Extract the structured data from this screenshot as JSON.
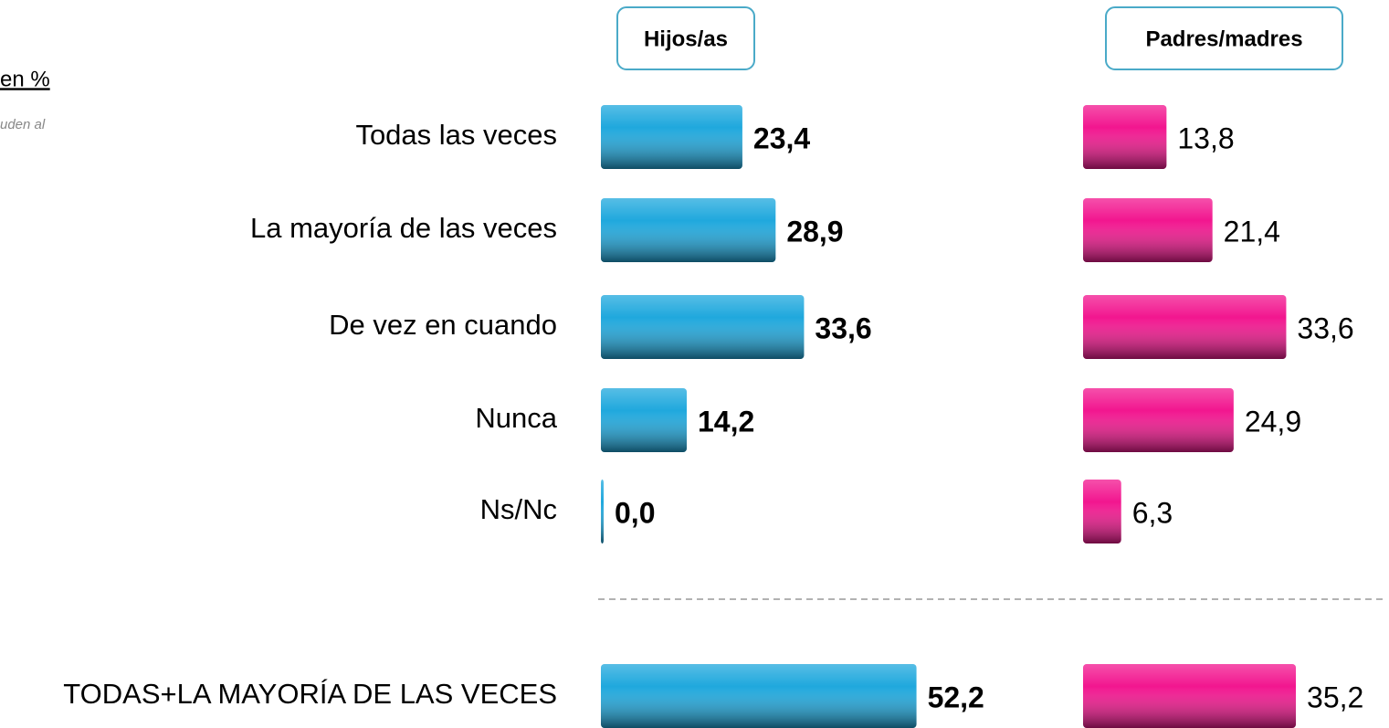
{
  "chart_data": {
    "type": "bar",
    "subtitle": "en %",
    "annotation": "uden al",
    "categories": [
      "Todas las veces",
      "La mayoría de las veces",
      "De vez en cuando",
      "Nunca",
      "Ns/Nc",
      "TODAS+LA MAYORÍA DE LAS VECES"
    ],
    "series": [
      {
        "name": "Hijos/as",
        "color": "#1fa8dd",
        "values": [
          23.4,
          28.9,
          33.6,
          14.2,
          0.0,
          52.2
        ],
        "value_labels": [
          "23,4",
          "28,9",
          "33,6",
          "14,2",
          "0,0",
          "52,2"
        ]
      },
      {
        "name": "Padres/madres",
        "color": "#f2168f",
        "values": [
          13.8,
          21.4,
          33.6,
          24.9,
          6.3,
          35.2
        ],
        "value_labels": [
          "13,8",
          "21,4",
          "33,6",
          "24,9",
          "6,3",
          "35,2"
        ]
      }
    ]
  }
}
